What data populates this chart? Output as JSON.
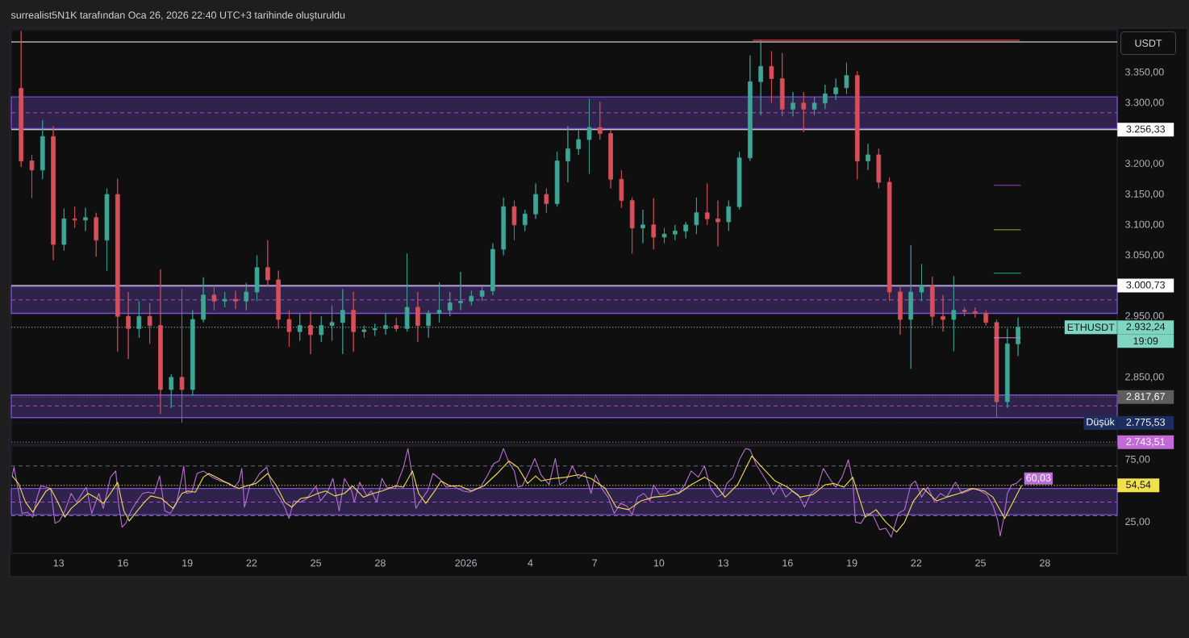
{
  "chart_data": [
    {
      "type": "candlestick",
      "title": "surrealist5N1K tarafından Oca 26, 2026 22:40 UTC+3 tarihinde oluşturuldu",
      "ylabel": "USDT",
      "x": [
        "2025-12-11T06:00",
        "2025-12-11T18:00",
        "2025-12-12T06:00",
        "2025-12-12T18:00",
        "2025-12-13T06:00",
        "2025-12-13T18:00",
        "2025-12-14T06:00",
        "2025-12-14T18:00",
        "2025-12-15T06:00",
        "2025-12-15T18:00",
        "2025-12-16T06:00",
        "2025-12-16T18:00",
        "2025-12-17T06:00",
        "2025-12-17T18:00",
        "2025-12-18T06:00",
        "2025-12-18T18:00",
        "2025-12-19T06:00",
        "2025-12-19T18:00",
        "2025-12-20T06:00",
        "2025-12-20T18:00",
        "2025-12-21T06:00",
        "2025-12-21T18:00",
        "2025-12-22T06:00",
        "2025-12-22T18:00",
        "2025-12-23T06:00",
        "2025-12-23T18:00",
        "2025-12-24T06:00",
        "2025-12-24T18:00",
        "2025-12-25T06:00",
        "2025-12-25T18:00",
        "2025-12-26T06:00",
        "2025-12-26T18:00",
        "2025-12-27T06:00",
        "2025-12-27T18:00",
        "2025-12-28T06:00",
        "2025-12-28T18:00",
        "2025-12-29T06:00",
        "2025-12-29T18:00",
        "2025-12-30T06:00",
        "2025-12-30T18:00",
        "2025-12-31T06:00",
        "2025-12-31T18:00",
        "2026-01-01T06:00",
        "2026-01-01T18:00",
        "2026-01-02T06:00",
        "2026-01-02T18:00",
        "2026-01-03T06:00",
        "2026-01-03T18:00",
        "2026-01-04T06:00",
        "2026-01-04T18:00",
        "2026-01-05T06:00",
        "2026-01-05T18:00",
        "2026-01-06T06:00",
        "2026-01-06T18:00",
        "2026-01-07T06:00",
        "2026-01-07T18:00",
        "2026-01-08T06:00",
        "2026-01-08T18:00",
        "2026-01-09T06:00",
        "2026-01-09T18:00",
        "2026-01-10T06:00",
        "2026-01-10T18:00",
        "2026-01-11T06:00",
        "2026-01-11T18:00",
        "2026-01-12T06:00",
        "2026-01-12T18:00",
        "2026-01-13T06:00",
        "2026-01-13T18:00",
        "2026-01-14T06:00",
        "2026-01-14T18:00",
        "2026-01-15T06:00",
        "2026-01-15T18:00",
        "2026-01-16T06:00",
        "2026-01-16T18:00",
        "2026-01-17T06:00",
        "2026-01-17T18:00",
        "2026-01-18T06:00",
        "2026-01-18T18:00",
        "2026-01-19T06:00",
        "2026-01-19T18:00",
        "2026-01-20T06:00",
        "2026-01-20T18:00",
        "2026-01-21T06:00",
        "2026-01-21T18:00",
        "2026-01-22T06:00",
        "2026-01-22T18:00",
        "2026-01-23T06:00",
        "2026-01-23T18:00",
        "2026-01-24T06:00",
        "2026-01-24T18:00",
        "2026-01-25T06:00",
        "2026-01-25T18:00",
        "2026-01-26T06:00",
        "2026-01-26T18:00"
      ],
      "ohlc": [
        [
          3324,
          3418,
          3195,
          3205
        ],
        [
          3205,
          3215,
          3144,
          3190
        ],
        [
          3190,
          3272,
          3175,
          3245
        ],
        [
          3245,
          3262,
          3042,
          3068
        ],
        [
          3068,
          3127,
          3058,
          3110
        ],
        [
          3110,
          3130,
          3095,
          3108
        ],
        [
          3108,
          3128,
          3090,
          3112
        ],
        [
          3112,
          3120,
          3048,
          3075
        ],
        [
          3075,
          3160,
          3025,
          3150
        ],
        [
          3150,
          3176,
          2892,
          2950
        ],
        [
          2950,
          2990,
          2880,
          2930
        ],
        [
          2930,
          2975,
          2915,
          2950
        ],
        [
          2950,
          2972,
          2905,
          2935
        ],
        [
          2935,
          3027,
          2790,
          2830
        ],
        [
          2830,
          2855,
          2800,
          2850
        ],
        [
          2850,
          2995,
          2775.53,
          2830
        ],
        [
          2830,
          2960,
          2820,
          2945
        ],
        [
          2945,
          3014,
          2940,
          2985
        ],
        [
          2985,
          3000,
          2960,
          2975
        ],
        [
          2975,
          2990,
          2965,
          2978
        ],
        [
          2978,
          2992,
          2962,
          2975
        ],
        [
          2975,
          3005,
          2960,
          2990
        ],
        [
          2990,
          3050,
          2975,
          3030
        ],
        [
          3030,
          3075,
          3000,
          3010
        ],
        [
          3010,
          3025,
          2930,
          2945
        ],
        [
          2945,
          2960,
          2900,
          2925
        ],
        [
          2925,
          2955,
          2910,
          2935
        ],
        [
          2935,
          2958,
          2888,
          2920
        ],
        [
          2920,
          2950,
          2908,
          2935
        ],
        [
          2935,
          2968,
          2910,
          2940
        ],
        [
          2940,
          2995,
          2888,
          2960
        ],
        [
          2960,
          2990,
          2892,
          2925
        ],
        [
          2925,
          2935,
          2915,
          2928
        ],
        [
          2928,
          2938,
          2918,
          2930
        ],
        [
          2930,
          2955,
          2920,
          2935
        ],
        [
          2935,
          2948,
          2925,
          2930
        ],
        [
          2930,
          3053,
          2925,
          2965
        ],
        [
          2965,
          2990,
          2908,
          2935
        ],
        [
          2935,
          2960,
          2915,
          2955
        ],
        [
          2955,
          3006,
          2940,
          2960
        ],
        [
          2960,
          2990,
          2950,
          2972
        ],
        [
          2972,
          3023,
          2960,
          2975
        ],
        [
          2975,
          2992,
          2968,
          2983
        ],
        [
          2983,
          3000,
          2975,
          2992
        ],
        [
          2992,
          3070,
          2985,
          3060
        ],
        [
          3060,
          3145,
          3050,
          3130
        ],
        [
          3130,
          3140,
          3075,
          3100
        ],
        [
          3100,
          3125,
          3090,
          3118
        ],
        [
          3118,
          3168,
          3110,
          3150
        ],
        [
          3150,
          3160,
          3120,
          3135
        ],
        [
          3135,
          3220,
          3130,
          3205
        ],
        [
          3205,
          3262,
          3170,
          3225
        ],
        [
          3225,
          3255,
          3215,
          3240
        ],
        [
          3240,
          3307,
          3184,
          3260
        ],
        [
          3260,
          3302,
          3240,
          3250
        ],
        [
          3250,
          3255,
          3160,
          3175
        ],
        [
          3175,
          3190,
          3128,
          3140
        ],
        [
          3140,
          3145,
          3053,
          3095
        ],
        [
          3095,
          3125,
          3070,
          3100
        ],
        [
          3100,
          3144,
          3060,
          3080
        ],
        [
          3080,
          3095,
          3070,
          3085
        ],
        [
          3085,
          3100,
          3075,
          3090
        ],
        [
          3090,
          3105,
          3078,
          3100
        ],
        [
          3100,
          3145,
          3085,
          3120
        ],
        [
          3120,
          3168,
          3100,
          3110
        ],
        [
          3110,
          3140,
          3065,
          3105
        ],
        [
          3105,
          3140,
          3090,
          3130
        ],
        [
          3130,
          3220,
          3125,
          3210
        ],
        [
          3210,
          3378,
          3205,
          3335
        ],
        [
          3335,
          3403,
          3280,
          3360
        ],
        [
          3360,
          3385,
          3300,
          3340
        ],
        [
          3340,
          3382,
          3278,
          3290
        ],
        [
          3290,
          3318,
          3278,
          3300
        ],
        [
          3300,
          3318,
          3252,
          3290
        ],
        [
          3290,
          3310,
          3280,
          3300
        ],
        [
          3300,
          3330,
          3290,
          3315
        ],
        [
          3315,
          3340,
          3305,
          3325
        ],
        [
          3325,
          3366,
          3315,
          3345
        ],
        [
          3345,
          3352,
          3175,
          3205
        ],
        [
          3205,
          3233,
          3190,
          3215
        ],
        [
          3215,
          3225,
          3160,
          3170
        ],
        [
          3170,
          3178,
          2975,
          2990
        ],
        [
          2990,
          3000,
          2920,
          2945
        ],
        [
          2945,
          3067,
          2864,
          2990
        ],
        [
          2990,
          3036,
          2975,
          3000
        ],
        [
          3000,
          3015,
          2935,
          2950
        ],
        [
          2950,
          2985,
          2925,
          2945
        ],
        [
          2945,
          3016,
          2893,
          2960
        ],
        [
          2960,
          2965,
          2950,
          2958
        ],
        [
          2958,
          2965,
          2948,
          2955
        ],
        [
          2955,
          2960,
          2935,
          2940
        ],
        [
          2940,
          2945,
          2784,
          2810
        ],
        [
          2810,
          2930,
          2800,
          2905
        ],
        [
          2905,
          2948,
          2885,
          2932.24
        ]
      ],
      "colors": [
        "#D64F5A",
        "#D64F5A",
        "#3FA596",
        "#D64F5A",
        "#3FA596",
        "#D64F5A",
        "#3FA596",
        "#D64F5A",
        "#3FA596",
        "#D64F5A",
        "#D64F5A",
        "#3FA596",
        "#D64F5A",
        "#D64F5A",
        "#3FA596",
        "#D64F5A",
        "#3FA596",
        "#3FA596",
        "#D64F5A",
        "#3FA596",
        "#D64F5A",
        "#3FA596",
        "#3FA596",
        "#D64F5A",
        "#D64F5A",
        "#D64F5A",
        "#3FA596",
        "#D64F5A",
        "#3FA596",
        "#3FA596",
        "#3FA596",
        "#D64F5A",
        "#3FA596",
        "#3FA596",
        "#3FA596",
        "#D64F5A",
        "#3FA596",
        "#D64F5A",
        "#3FA596",
        "#3FA596",
        "#3FA596",
        "#3FA596",
        "#3FA596",
        "#3FA596",
        "#3FA596",
        "#3FA596",
        "#D64F5A",
        "#3FA596",
        "#3FA596",
        "#D64F5A",
        "#3FA596",
        "#3FA596",
        "#3FA596",
        "#3FA596",
        "#D64F5A",
        "#D64F5A",
        "#D64F5A",
        "#D64F5A",
        "#3FA596",
        "#D64F5A",
        "#3FA596",
        "#3FA596",
        "#3FA596",
        "#3FA596",
        "#D64F5A",
        "#D64F5A",
        "#3FA596",
        "#3FA596",
        "#3FA596",
        "#3FA596",
        "#D64F5A",
        "#D64F5A",
        "#3FA596",
        "#D64F5A",
        "#3FA596",
        "#3FA596",
        "#3FA596",
        "#3FA596",
        "#D64F5A",
        "#3FA596",
        "#D64F5A",
        "#D64F5A",
        "#D64F5A",
        "#3FA596",
        "#3FA596",
        "#D64F5A",
        "#D64F5A",
        "#3FA596",
        "#D64F5A",
        "#D64F5A",
        "#D64F5A",
        "#D64F5A",
        "#3FA596",
        "#3FA596"
      ],
      "series": [
        {
          "type": "line",
          "x": [
            "2026-01-14T09:00",
            "2026-01-26T20:00"
          ],
          "values": [
            3403,
            3403
          ],
          "color": "#F23645"
        },
        {
          "type": "line",
          "x": [
            "2026-01-25T15:00",
            "2026-01-26T21:00"
          ],
          "values": [
            3165,
            3165
          ],
          "color": "#9C3FC0"
        },
        {
          "type": "line",
          "x": [
            "2026-01-25T15:00",
            "2026-01-26T21:00"
          ],
          "values": [
            3092,
            3092
          ],
          "color": "#8C8A2A"
        },
        {
          "type": "line",
          "x": [
            "2026-01-25T15:00",
            "2026-01-26T21:00"
          ],
          "values": [
            3021,
            3021
          ],
          "color": "#14907C"
        },
        {
          "type": "line",
          "x": [
            "2026-01-25T15:00",
            "2026-01-26T21:00"
          ],
          "values": [
            2915,
            2915
          ],
          "color": "#D27EE0"
        }
      ],
      "xlim": [
        "2025-12-10T19:00",
        "2026-01-31T09:00"
      ],
      "ylim": [
        2740,
        3420
      ],
      "yticks": [
        {
          "value": 2850,
          "label": "2.850,00"
        },
        {
          "value": 2950,
          "label": "2.950,00"
        },
        {
          "value": 3050,
          "label": "3.050,00"
        },
        {
          "value": 3100,
          "label": "3.100,00"
        },
        {
          "value": 3150,
          "label": "3.150,00"
        },
        {
          "value": 3200,
          "label": "3.200,00"
        },
        {
          "value": 3300,
          "label": "3.300,00"
        },
        {
          "value": 3350,
          "label": "3.350,00"
        }
      ],
      "tick_labels": "y",
      "ref_lines": [
        {
          "axis": "y",
          "value": 3400,
          "color": "#FFFFFF"
        },
        {
          "axis": "y",
          "value": 3256.33,
          "label": "3.256,33",
          "color": "#FFFFFF"
        },
        {
          "axis": "y",
          "value": 3000.73,
          "label": "3.000,73",
          "color": "#FFFFFF"
        },
        {
          "axis": "y",
          "value": 2932.24,
          "label": "2.932,24",
          "color": "#7ED6C1",
          "line_style": "dotted"
        },
        {
          "axis": "y",
          "value": 2817.67,
          "label": "2.817,67",
          "color": "#5D5D5D",
          "line_style": "dotted"
        },
        {
          "axis": "y",
          "value": 2775.53,
          "label": "2.775,53",
          "color": "#1C2D5E",
          "line_style": "dotted"
        },
        {
          "axis": "y",
          "value": 2743.51,
          "label": "2.743,51",
          "color": "#C26BD6",
          "line_style": "dotted"
        },
        {
          "axis": "y",
          "value": 3284,
          "color": "#A64DC8",
          "line_style": "dashed"
        },
        {
          "axis": "y",
          "value": 2977,
          "color": "#A64DC8",
          "line_style": "dashed"
        },
        {
          "axis": "y",
          "value": 2803,
          "color": "#A64DC8",
          "line_style": "dashed"
        }
      ],
      "bands": [
        {
          "axis": "y",
          "from": 3258,
          "to": 3310,
          "color": "#7B4FD6"
        },
        {
          "axis": "y",
          "from": 2955,
          "to": 2999,
          "color": "#7B4FD6"
        },
        {
          "axis": "y",
          "from": 2784,
          "to": 2821,
          "color": "#7B4FD6"
        }
      ],
      "annotations": [
        {
          "text": "ETHUSDT",
          "y": 2932.24
        },
        "19:09",
        {
          "text": "Düşük",
          "y": 2775.53
        }
      ]
    },
    {
      "type": "line",
      "series": [
        {
          "color": "#B86FD6",
          "x": [
            "2025-12-10T20:00",
            "2025-12-10T22:00",
            "2025-12-11T03:00",
            "2025-12-11T07:00",
            "2025-12-11T13:00",
            "2025-12-11T19:00",
            "2025-12-12T00:00",
            "2025-12-12T04:00",
            "2025-12-12T10:00",
            "2025-12-12T15:00",
            "2025-12-12T20:00",
            "2025-12-13T01:00",
            "2025-12-13T07:00",
            "2025-12-13T14:00",
            "2025-12-13T20:00",
            "2025-12-14T04:00",
            "2025-12-14T07:00",
            "2025-12-14T13:00",
            "2025-12-14T21:00",
            "2025-12-15T02:00",
            "2025-12-15T10:00",
            "2025-12-15T16:00",
            "2025-12-15T19:00",
            "2025-12-15T23:00",
            "2025-12-16T03:00",
            "2025-12-16T09:00",
            "2025-12-16T16:00",
            "2025-12-16T22:00",
            "2025-12-17T04:00",
            "2025-12-17T11:00",
            "2025-12-17T17:00",
            "2025-12-17T23:00",
            "2025-12-18T05:00",
            "2025-12-18T12:00",
            "2025-12-18T18:00",
            "2025-12-18T20:00",
            "2025-12-18T23:00",
            "2025-12-19T05:00",
            "2025-12-19T11:00",
            "2025-12-19T18:00",
            "2025-12-20T04:00",
            "2025-12-20T13:00",
            "2025-12-20T23:00",
            "2025-12-21T05:00",
            "2025-12-21T10:00",
            "2025-12-21T13:00",
            "2025-12-21T16:00",
            "2025-12-21T22:00",
            "2025-12-22T03:00",
            "2025-12-22T09:00",
            "2025-12-22T17:00",
            "2025-12-22T22:00",
            "2025-12-23T04:00",
            "2025-12-23T08:00",
            "2025-12-23T13:00",
            "2025-12-23T18:00",
            "2025-12-23T23:00",
            "2025-12-24T07:00",
            "2025-12-24T14:00",
            "2025-12-25T00:00",
            "2025-12-25T05:00",
            "2025-12-25T13:00",
            "2025-12-25T19:00",
            "2025-12-26T02:00",
            "2025-12-26T08:00",
            "2025-12-26T16:00",
            "2025-12-26T19:00",
            "2025-12-27T01:00",
            "2025-12-27T09:00",
            "2025-12-27T14:00",
            "2025-12-27T20:00",
            "2025-12-28T02:00",
            "2025-12-28T07:00",
            "2025-12-28T17:00",
            "2025-12-29T02:00",
            "2025-12-29T07:00",
            "2025-12-29T11:00",
            "2025-12-29T16:00",
            "2025-12-29T21:00",
            "2025-12-30T05:00",
            "2025-12-30T11:00",
            "2025-12-30T18:00",
            "2025-12-31T02:00",
            "2025-12-31T09:00",
            "2025-12-31T21:00",
            "2026-01-01T04:00",
            "2026-01-01T16:00",
            "2026-01-01T23:00",
            "2026-01-02T07:00",
            "2026-01-02T13:00",
            "2026-01-02T18:00",
            "2026-01-03T00:00",
            "2026-01-03T06:00",
            "2026-01-03T10:00",
            "2026-01-03T15:00",
            "2026-01-03T23:00",
            "2026-01-04T05:00",
            "2026-01-04T12:00",
            "2026-01-04T21:00",
            "2026-01-05T04:00",
            "2026-01-05T09:00",
            "2026-01-05T16:00",
            "2026-01-05T23:00",
            "2026-01-06T06:00",
            "2026-01-06T13:00",
            "2026-01-06T20:00",
            "2026-01-07T01:00",
            "2026-01-07T08:00",
            "2026-01-07T15:00",
            "2026-01-07T22:00",
            "2026-01-08T05:00",
            "2026-01-08T12:00",
            "2026-01-08T18:00",
            "2026-01-09T00:00",
            "2026-01-09T07:00",
            "2026-01-09T14:00",
            "2026-01-09T18:00",
            "2026-01-10T01:00",
            "2026-01-10T08:00",
            "2026-01-10T15:00",
            "2026-01-10T22:00",
            "2026-01-11T05:00",
            "2026-01-11T12:00",
            "2026-01-11T20:00",
            "2026-01-12T03:00",
            "2026-01-12T10:00",
            "2026-01-12T17:00",
            "2026-01-13T00:00",
            "2026-01-13T04:00",
            "2026-01-13T11:00",
            "2026-01-13T18:00",
            "2026-01-14T01:00",
            "2026-01-14T06:00",
            "2026-01-14T13:00",
            "2026-01-14T20:00",
            "2026-01-15T03:00",
            "2026-01-15T08:00",
            "2026-01-15T15:00",
            "2026-01-15T22:00",
            "2026-01-16T05:00",
            "2026-01-16T12:00",
            "2026-01-16T19:00",
            "2026-01-17T02:00",
            "2026-01-17T09:00",
            "2026-01-17T16:00",
            "2026-01-17T23:00",
            "2026-01-18T06:00",
            "2026-01-18T13:00",
            "2026-01-18T20:00",
            "2026-01-19T01:00",
            "2026-01-19T04:00",
            "2026-01-19T10:00",
            "2026-01-19T17:00",
            "2026-01-20T00:00",
            "2026-01-20T07:00",
            "2026-01-20T14:00",
            "2026-01-20T20:00",
            "2026-01-21T04:00",
            "2026-01-21T11:00",
            "2026-01-21T18:00",
            "2026-01-21T23:00",
            "2026-01-22T06:00",
            "2026-01-22T13:00",
            "2026-01-22T20:00",
            "2026-01-23T03:00",
            "2026-01-23T10:00",
            "2026-01-23T20:00",
            "2026-01-24T03:00",
            "2026-01-24T10:00",
            "2026-01-24T17:00",
            "2026-01-25T00:00",
            "2026-01-25T07:00",
            "2026-01-25T14:00",
            "2026-01-25T19:00",
            "2026-01-25T22:00",
            "2026-01-26T02:00",
            "2026-01-26T06:00",
            "2026-01-26T11:00",
            "2026-01-26T16:00",
            "2026-01-26T22:00"
          ],
          "values": [
            62,
            69,
            50,
            32,
            33,
            29,
            45,
            54,
            53,
            52,
            24,
            26,
            34,
            48,
            41,
            50,
            53,
            32,
            48,
            36,
            61,
            66,
            40,
            21,
            24,
            34,
            42,
            48,
            49,
            48,
            62,
            34,
            32,
            40,
            61,
            70,
            48,
            49,
            64,
            66,
            61,
            58,
            56,
            53,
            58,
            68,
            37,
            54,
            57,
            64,
            69,
            56,
            48,
            44,
            37,
            28,
            42,
            41,
            44,
            54,
            42,
            49,
            60,
            34,
            60,
            50,
            41,
            57,
            46,
            50,
            41,
            60,
            53,
            52,
            69,
            84,
            66,
            36,
            42,
            50,
            64,
            60,
            53,
            54,
            50,
            49,
            53,
            61,
            72,
            74,
            84,
            73,
            66,
            53,
            54,
            66,
            76,
            63,
            55,
            76,
            55,
            58,
            70,
            60,
            65,
            48,
            63,
            52,
            45,
            32,
            40,
            38,
            31,
            45,
            48,
            42,
            55,
            47,
            48,
            52,
            48,
            55,
            66,
            61,
            70,
            52,
            45,
            48,
            56,
            61,
            75,
            84,
            83,
            71,
            63,
            55,
            47,
            55,
            45,
            50,
            47,
            37,
            48,
            52,
            68,
            60,
            53,
            61,
            75,
            58,
            25,
            24,
            32,
            30,
            19,
            20,
            13,
            32,
            35,
            55,
            58,
            45,
            53,
            42,
            48,
            45,
            57,
            48,
            50,
            52,
            50,
            47,
            38,
            27,
            14,
            28,
            48,
            55,
            56,
            60.03
          ],
          "value_labels": [
            null,
            null,
            null,
            null,
            null,
            null,
            null,
            null,
            null,
            null,
            null,
            null,
            null,
            null,
            null,
            null,
            null,
            null,
            null,
            null,
            null,
            null,
            null,
            null,
            null,
            null,
            null,
            null,
            null,
            null,
            null,
            null,
            null,
            null,
            null,
            null,
            null,
            null,
            null,
            null,
            null,
            null,
            null,
            null,
            null,
            null,
            null,
            null,
            null,
            null,
            null,
            null,
            null,
            null,
            null,
            null,
            null,
            null,
            null,
            null,
            null,
            null,
            null,
            null,
            null,
            null,
            null,
            null,
            null,
            null,
            null,
            null,
            null,
            null,
            null,
            null,
            null,
            null,
            null,
            null,
            null,
            null,
            null,
            null,
            null,
            null,
            null,
            null,
            null,
            null,
            null,
            null,
            null,
            null,
            null,
            null,
            null,
            null,
            null,
            null,
            null,
            null,
            null,
            null,
            null,
            null,
            null,
            null,
            null,
            null,
            null,
            null,
            null,
            null,
            null,
            null,
            null,
            null,
            null,
            null,
            null,
            null,
            null,
            null,
            null,
            null,
            null,
            null,
            null,
            null,
            null,
            null,
            null,
            null,
            null,
            null,
            null,
            null,
            null,
            null,
            null,
            null,
            null,
            null,
            null,
            null,
            null,
            null,
            null,
            null,
            null,
            null,
            null,
            null,
            null,
            null,
            null,
            null,
            null,
            null,
            null,
            null,
            null,
            null,
            null,
            null,
            null,
            null,
            null,
            null,
            null,
            null,
            null,
            null,
            null,
            null,
            null,
            null,
            null,
            "60,03"
          ]
        },
        {
          "color": "#F2E14C",
          "x": [
            "2025-12-10T20:00",
            "2025-12-11T03:00",
            "2025-12-11T11:00",
            "2025-12-11T19:00",
            "2025-12-12T02:00",
            "2025-12-12T10:00",
            "2025-12-12T15:00",
            "2025-12-12T23:00",
            "2025-12-13T07:00",
            "2025-12-13T14:00",
            "2025-12-13T22:00",
            "2025-12-14T09:00",
            "2025-12-14T19:00",
            "2025-12-15T02:00",
            "2025-12-15T10:00",
            "2025-12-15T18:00",
            "2025-12-16T01:00",
            "2025-12-16T07:00",
            "2025-12-16T16:00",
            "2025-12-17T00:00",
            "2025-12-17T07:00",
            "2025-12-17T19:00",
            "2025-12-18T08:00",
            "2025-12-18T18:00",
            "2025-12-19T01:00",
            "2025-12-19T09:00",
            "2025-12-19T18:00",
            "2025-12-20T00:00",
            "2025-12-20T11:00",
            "2025-12-21T03:00",
            "2025-12-21T10:00",
            "2025-12-21T18:00",
            "2025-12-22T05:00",
            "2025-12-22T18:00",
            "2025-12-23T04:00",
            "2025-12-23T13:00",
            "2025-12-23T21:00",
            "2025-12-24T07:00",
            "2025-12-24T16:00",
            "2025-12-25T02:00",
            "2025-12-25T11:00",
            "2025-12-25T21:00",
            "2025-12-26T08:00",
            "2025-12-26T17:00",
            "2025-12-27T05:00",
            "2025-12-27T16:00",
            "2025-12-28T02:00",
            "2025-12-28T17:00",
            "2025-12-29T02:00",
            "2025-12-29T12:00",
            "2025-12-29T19:00",
            "2025-12-30T03:00",
            "2025-12-30T13:00",
            "2025-12-30T20:00",
            "2025-12-31T06:00",
            "2025-12-31T17:00",
            "2026-01-01T06:00",
            "2026-01-01T20:00",
            "2026-01-02T11:00",
            "2026-01-03T00:00",
            "2026-01-03T10:00",
            "2026-01-03T21:00",
            "2026-01-04T06:00",
            "2026-01-04T12:00",
            "2026-01-05T02:00",
            "2026-01-05T16:00",
            "2026-01-06T06:00",
            "2026-01-06T20:00",
            "2026-01-07T12:00",
            "2026-01-08T00:00",
            "2026-01-08T14:00",
            "2026-01-09T04:00",
            "2026-01-09T18:00",
            "2026-01-10T08:00",
            "2026-01-10T22:00",
            "2026-01-11T12:00",
            "2026-01-12T03:00",
            "2026-01-12T14:00",
            "2026-01-13T02:00",
            "2026-01-13T16:00",
            "2026-01-14T08:00",
            "2026-01-14T18:00",
            "2026-01-15T10:00",
            "2026-01-16T00:00",
            "2026-01-16T14:00",
            "2026-01-17T04:00",
            "2026-01-17T18:00",
            "2026-01-18T04:00",
            "2026-01-18T15:00",
            "2026-01-19T01:00",
            "2026-01-19T15:00",
            "2026-01-20T03:00",
            "2026-01-20T14:00",
            "2026-01-21T02:00",
            "2026-01-21T11:00",
            "2026-01-21T21:00",
            "2026-01-22T08:00",
            "2026-01-22T23:00",
            "2026-01-23T10:00",
            "2026-01-24T00:00",
            "2026-01-24T14:00",
            "2026-01-25T04:00",
            "2026-01-25T14:00",
            "2026-01-26T03:00",
            "2026-01-26T13:00",
            "2026-01-26T22:00"
          ],
          "values": [
            62,
            56,
            41,
            33,
            41,
            50,
            52,
            41,
            29,
            36,
            41,
            48,
            44,
            40,
            48,
            57,
            34,
            26,
            34,
            41,
            46,
            44,
            36,
            48,
            50,
            49,
            61,
            64,
            60,
            54,
            52,
            54,
            56,
            64,
            54,
            41,
            37,
            44,
            45,
            48,
            50,
            46,
            48,
            54,
            45,
            48,
            50,
            54,
            53,
            66,
            48,
            40,
            50,
            58,
            54,
            54,
            50,
            54,
            64,
            74,
            69,
            56,
            62,
            58,
            60,
            61,
            63,
            60,
            52,
            37,
            35,
            42,
            45,
            46,
            48,
            55,
            61,
            56,
            45,
            55,
            78,
            70,
            58,
            53,
            45,
            47,
            55,
            56,
            53,
            61,
            29,
            35,
            25,
            17,
            25,
            42,
            52,
            42,
            45,
            48,
            52,
            50,
            45,
            28,
            42,
            54.54
          ]
        }
      ],
      "xlim": [
        "2025-12-10T19:00",
        "2026-01-31T09:00"
      ],
      "xticks": [
        {
          "value": "2025-12-13",
          "label": "13"
        },
        {
          "value": "2025-12-16",
          "label": "16"
        },
        {
          "value": "2025-12-19",
          "label": "19"
        },
        {
          "value": "2025-12-22",
          "label": "22"
        },
        {
          "value": "2025-12-25",
          "label": "25"
        },
        {
          "value": "2025-12-28",
          "label": "28"
        },
        {
          "value": "2026-01-01",
          "label": "2026"
        },
        {
          "value": "2026-01-04",
          "label": "4"
        },
        {
          "value": "2026-01-07",
          "label": "7"
        },
        {
          "value": "2026-01-10",
          "label": "10"
        },
        {
          "value": "2026-01-13",
          "label": "13"
        },
        {
          "value": "2026-01-16",
          "label": "16"
        },
        {
          "value": "2026-01-19",
          "label": "19"
        },
        {
          "value": "2026-01-22",
          "label": "22"
        },
        {
          "value": "2026-01-25",
          "label": "25"
        },
        {
          "value": "2026-01-28",
          "label": "28"
        }
      ],
      "ylim": [
        0,
        86
      ],
      "yticks": [
        {
          "value": 75,
          "label": "75,00"
        },
        {
          "value": 25,
          "label": "25,00"
        }
      ],
      "ref_lines": [
        {
          "axis": "y",
          "value": 70,
          "color": "#6A6D78",
          "line_style": "dashed"
        },
        {
          "axis": "y",
          "value": 30,
          "color": "#6A6D78",
          "line_style": "dashed"
        },
        {
          "axis": "y",
          "value": 54.54,
          "label": "54,54",
          "color": "#F2E14C",
          "line_style": "dotted"
        },
        {
          "axis": "y",
          "value": 41,
          "color": "#A64DC8",
          "line_style": "dashed"
        }
      ],
      "bands": [
        {
          "axis": "y",
          "from": 31,
          "to": 52,
          "color": "#7B4FD6"
        }
      ]
    }
  ]
}
